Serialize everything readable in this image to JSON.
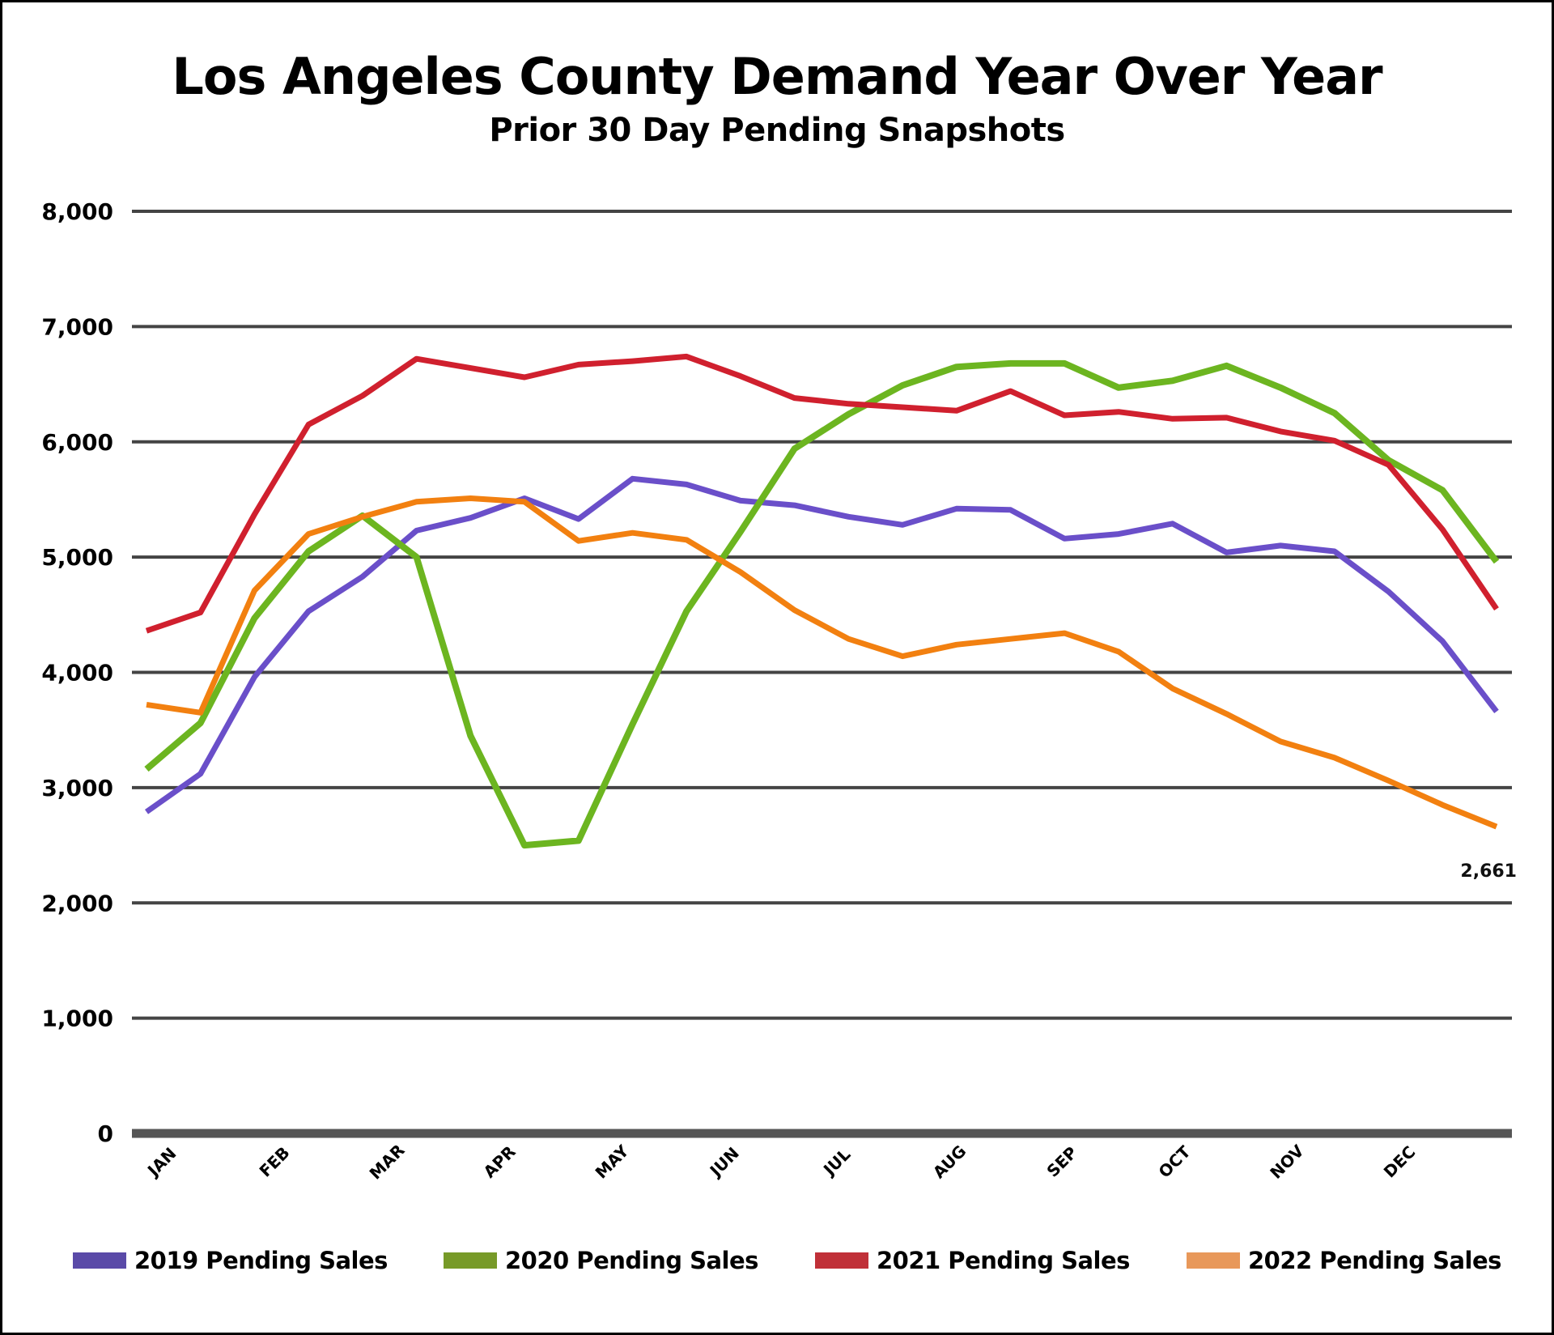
{
  "chart_data": {
    "type": "line",
    "title": "Los Angeles County Demand Year Over Year",
    "subtitle": "Prior 30 Day Pending Snapshots",
    "xlabel": "",
    "ylabel": "",
    "ylim": [
      0,
      8000
    ],
    "yticks": [
      0,
      1000,
      2000,
      3000,
      4000,
      5000,
      6000,
      7000,
      8000
    ],
    "ytick_labels": [
      "0",
      "1,000",
      "2,000",
      "3,000",
      "4,000",
      "5,000",
      "6,000",
      "7,000",
      "8,000"
    ],
    "month_labels": [
      "JAN",
      "FEB",
      "MAR",
      "APR",
      "MAY",
      "JUN",
      "JUL",
      "AUG",
      "SEP",
      "OCT",
      "NOV",
      "DEC"
    ],
    "points_per_series": 26,
    "grid": true,
    "legend_position": "bottom",
    "series": [
      {
        "name": "2019 Pending Sales",
        "color": "#6a4fc9",
        "legend_color": "#5a4aa8",
        "values": [
          2790,
          3120,
          3960,
          4530,
          4830,
          5230,
          5340,
          5510,
          5330,
          5680,
          5630,
          5490,
          5450,
          5350,
          5280,
          5420,
          5410,
          5160,
          5200,
          5290,
          5040,
          5100,
          5050,
          4700,
          4270,
          3660
        ]
      },
      {
        "name": "2020 Pending Sales",
        "color": "#6cb520",
        "legend_color": "#779a28",
        "values": [
          3160,
          3560,
          4470,
          5050,
          5360,
          5000,
          3450,
          2500,
          2540,
          3550,
          4530,
          5220,
          5940,
          6240,
          6490,
          6650,
          6680,
          6680,
          6470,
          6530,
          6660,
          6470,
          6250,
          5840,
          5580,
          4960
        ]
      },
      {
        "name": "2021 Pending Sales",
        "color": "#d0202e",
        "legend_color": "#c03038",
        "values": [
          4360,
          4520,
          5370,
          6150,
          6400,
          6720,
          6640,
          6560,
          6670,
          6700,
          6740,
          6570,
          6380,
          6330,
          6300,
          6270,
          6440,
          6230,
          6260,
          6200,
          6210,
          6090,
          6010,
          5800,
          5240,
          4550
        ]
      },
      {
        "name": "2022 Pending Sales",
        "color": "#f28010",
        "legend_color": "#e8985a",
        "values": [
          3720,
          3650,
          4710,
          5200,
          5350,
          5480,
          5510,
          5480,
          5140,
          5210,
          5150,
          4870,
          4540,
          4290,
          4140,
          4240,
          4290,
          4340,
          4180,
          3860,
          3640,
          3400,
          3260,
          3060,
          2850,
          2661
        ]
      }
    ],
    "annotations": [
      {
        "series": "2022 Pending Sales",
        "point": "last",
        "text": "2,661"
      }
    ]
  }
}
